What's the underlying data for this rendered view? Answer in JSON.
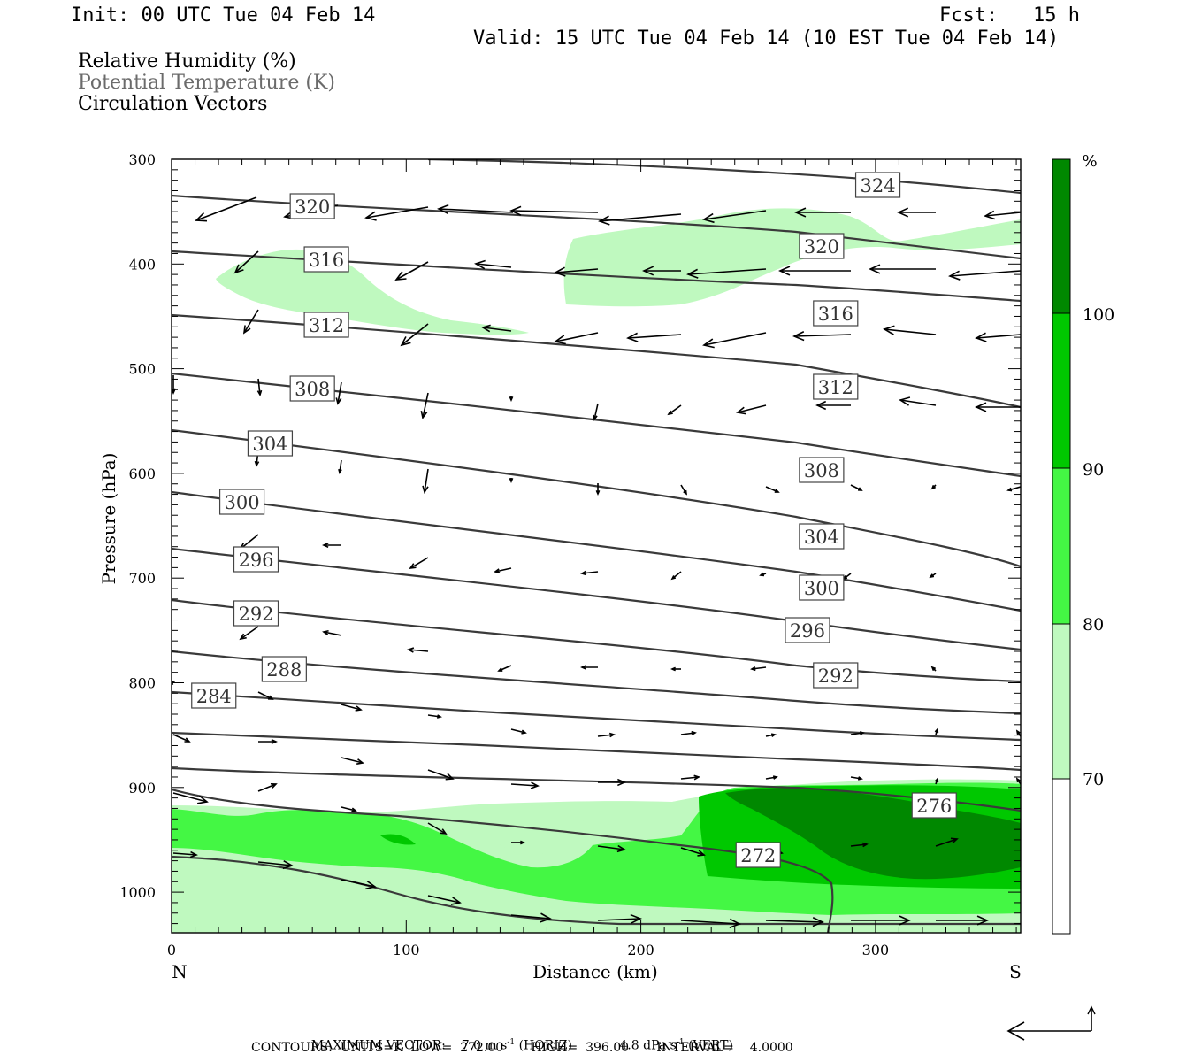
{
  "header": {
    "init": "Init: 00 UTC Tue 04 Feb 14",
    "fcst": "Fcst:   15 h",
    "valid": "Valid: 15 UTC Tue 04 Feb 14 (10 EST Tue 04 Feb 14)"
  },
  "fields": {
    "rh": "Relative Humidity (%)",
    "theta": "Potential Temperature (K)",
    "vectors": "Circulation Vectors"
  },
  "colors": {
    "rh70": "#bff9bf",
    "rh80": "#44f744",
    "rh90": "#00c800",
    "rh100": "#008800",
    "contour": "#3a3a3a"
  },
  "footer": {
    "max_vector_label": "MAXIMUM VECTOR:",
    "horiz_value": "7.0 m s",
    "horiz_exp": "-1",
    "horiz_tag": "(HORIZ)",
    "vert_value": "4.8 dPa s",
    "vert_exp": "-1",
    "vert_tag": "(VERT)",
    "contours_line": "CONTOURS:  UNITS=K  LOW=  272.00       HIGH=  396.00       INTERVAL=    4.0000"
  },
  "chart_data": {
    "type": "cross-section",
    "xlabel": "Distance (km)",
    "ylabel": "Pressure (hPa)",
    "xlim": [
      0,
      362
    ],
    "ylim": [
      300,
      1040
    ],
    "x_ticks": [
      0,
      100,
      200,
      300
    ],
    "y_ticks": [
      300,
      400,
      500,
      600,
      700,
      800,
      900,
      1000
    ],
    "end_labels": {
      "left": "N",
      "right": "S"
    },
    "colorbar": {
      "unit": "%",
      "levels": [
        "70",
        "80",
        "90",
        "100"
      ]
    },
    "theta_contours": [
      {
        "value": 272,
        "label": "272",
        "label_at": [
          250,
          966
        ]
      },
      {
        "value": 276,
        "label": "276",
        "label_at": [
          325,
          910
        ]
      },
      {
        "value": 284,
        "label": "284",
        "label_at": [
          18,
          786
        ]
      },
      {
        "value": 288,
        "label": "288",
        "label_at": [
          48,
          756
        ]
      },
      {
        "value": 292,
        "label": "292",
        "label_at": [
          36,
          693
        ]
      },
      {
        "value": 292,
        "label": "292",
        "label_at": [
          283,
          763
        ]
      },
      {
        "value": 296,
        "label": "296",
        "label_at": [
          36,
          632
        ]
      },
      {
        "value": 296,
        "label": "296",
        "label_at": [
          271,
          712
        ]
      },
      {
        "value": 300,
        "label": "300",
        "label_at": [
          30,
          567
        ]
      },
      {
        "value": 300,
        "label": "300",
        "label_at": [
          277,
          664
        ]
      },
      {
        "value": 304,
        "label": "304",
        "label_at": [
          42,
          501
        ]
      },
      {
        "value": 304,
        "label": "304",
        "label_at": [
          277,
          606
        ]
      },
      {
        "value": 308,
        "label": "308",
        "label_at": [
          60,
          439
        ]
      },
      {
        "value": 308,
        "label": "308",
        "label_at": [
          277,
          531
        ]
      },
      {
        "value": 312,
        "label": "312",
        "label_at": [
          66,
          367
        ]
      },
      {
        "value": 312,
        "label": "312",
        "label_at": [
          283,
          437
        ]
      },
      {
        "value": 316,
        "label": "316",
        "label_at": [
          66,
          293
        ]
      },
      {
        "value": 316,
        "label": "316",
        "label_at": [
          283,
          354
        ]
      },
      {
        "value": 320,
        "label": "320",
        "label_at": [
          60,
          233
        ]
      },
      {
        "value": 320,
        "label": "320",
        "label_at": [
          277,
          278
        ]
      },
      {
        "value": 324,
        "label": "324",
        "label_at": [
          301,
          209
        ]
      }
    ]
  }
}
